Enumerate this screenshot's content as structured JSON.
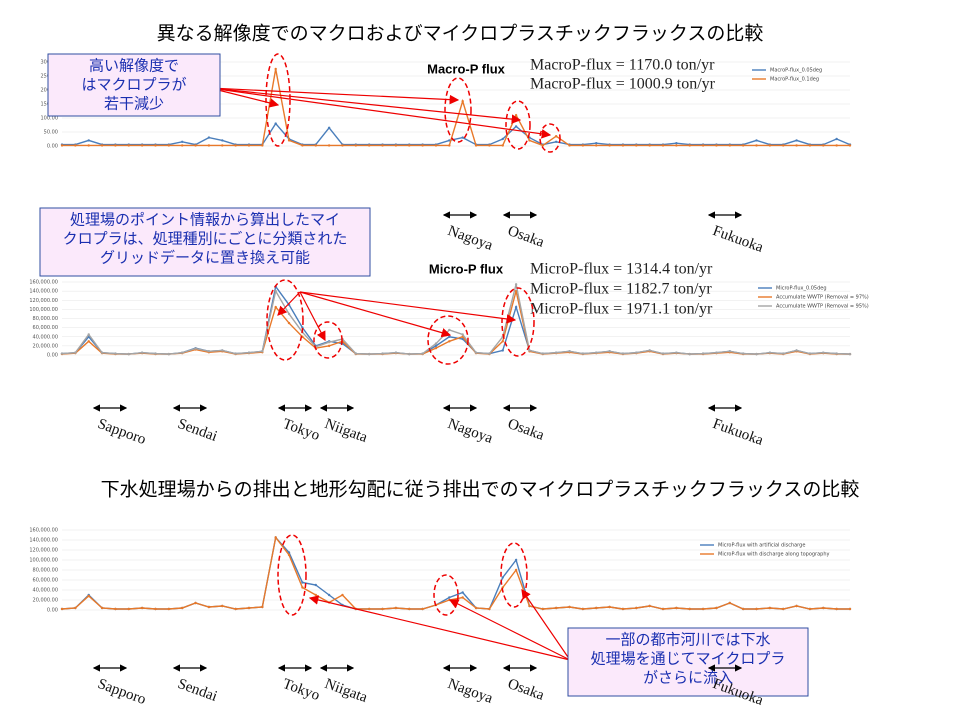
{
  "headings": [
    "異なる解像度でのマクロおよびマイクロプラスチックフラックスの比較",
    "下水処理場からの排出と地形勾配に従う排出でのマイクロプラスチックフラックスの比較"
  ],
  "chart_data": [
    {
      "type": "line",
      "title": "Macro-P flux",
      "annotations": [
        "MacroP-flux = 1170.0 ton/yr",
        "MacroP-flux = 1000.9 ton/yr"
      ],
      "callout": [
        "高い解像度で",
        "はマクロプラが",
        "若干減少"
      ],
      "cities": [
        "Nagoya",
        "Osaka",
        "Fukuoka"
      ],
      "ylim": [
        0,
        300
      ],
      "yticks": [
        {
          "value": 0,
          "label": "0.00"
        },
        {
          "value": 50,
          "label": "50.00"
        },
        {
          "value": 100,
          "label": "100.00"
        },
        {
          "value": 150,
          "label": "150.00"
        },
        {
          "value": 200,
          "label": "200.00"
        },
        {
          "value": 250,
          "label": "250.00"
        },
        {
          "value": 300,
          "label": "300.00"
        }
      ],
      "series": [
        {
          "name": "MacroP-flux_0.05deg",
          "color": "#4a7ebb",
          "values": [
            5,
            5,
            20,
            5,
            5,
            5,
            5,
            5,
            5,
            15,
            5,
            30,
            20,
            5,
            5,
            5,
            80,
            25,
            5,
            5,
            65,
            5,
            5,
            5,
            5,
            5,
            5,
            5,
            5,
            20,
            30,
            5,
            5,
            25,
            70,
            30,
            5,
            15,
            5,
            5,
            10,
            5,
            5,
            5,
            5,
            5,
            10,
            5,
            5,
            5,
            5,
            5,
            20,
            5,
            5,
            20,
            5,
            5,
            25,
            5
          ]
        },
        {
          "name": "MacroP-flux_0.1deg",
          "color": "#e8792a",
          "values": [
            2,
            2,
            2,
            2,
            2,
            2,
            2,
            2,
            2,
            2,
            2,
            2,
            2,
            2,
            2,
            2,
            275,
            20,
            2,
            2,
            2,
            2,
            2,
            2,
            2,
            2,
            2,
            2,
            2,
            2,
            160,
            2,
            2,
            2,
            110,
            20,
            2,
            35,
            2,
            2,
            2,
            2,
            2,
            2,
            2,
            2,
            2,
            2,
            2,
            2,
            2,
            2,
            2,
            2,
            2,
            2,
            2,
            2,
            2,
            2
          ]
        }
      ]
    },
    {
      "type": "line",
      "title": "Micro-P flux",
      "annotations": [
        "MicroP-flux = 1314.4 ton/yr",
        "MicroP-flux = 1182.7 ton/yr",
        "MicroP-flux = 1971.1 ton/yr"
      ],
      "callout": [
        "処理場のポイント情報から算出したマイ",
        "クロプラは、処理種別にごとに分類された",
        "グリッドデータに置き換え可能"
      ],
      "cities": [
        "Sapporo",
        "Sendai",
        "Tokyo",
        "Niigata",
        "Nagoya",
        "Osaka",
        "Fukuoka"
      ],
      "ylim": [
        0,
        160000
      ],
      "yticks": [
        {
          "value": 0,
          "label": "0.00"
        },
        {
          "value": 20000,
          "label": "20,000.00"
        },
        {
          "value": 40000,
          "label": "40,000.00"
        },
        {
          "value": 60000,
          "label": "60,000.00"
        },
        {
          "value": 80000,
          "label": "80,000.00"
        },
        {
          "value": 100000,
          "label": "100,000.00"
        },
        {
          "value": 120000,
          "label": "120,000.00"
        },
        {
          "value": 140000,
          "label": "140,000.00"
        },
        {
          "value": 160000,
          "label": "160,000.00"
        }
      ],
      "series": [
        {
          "name": "MicroP-flux_0.05deg",
          "color": "#4a7ebb",
          "values": [
            3000,
            5000,
            40000,
            5000,
            3000,
            2000,
            5000,
            3000,
            2000,
            5000,
            15000,
            8000,
            10000,
            3000,
            5000,
            8000,
            150000,
            110000,
            60000,
            20000,
            30000,
            25000,
            3000,
            2000,
            3000,
            5000,
            2000,
            3000,
            20000,
            40000,
            35000,
            5000,
            3000,
            10000,
            105000,
            10000,
            3000,
            5000,
            8000,
            3000,
            5000,
            8000,
            3000,
            5000,
            10000,
            3000,
            5000,
            2000,
            3000,
            5000,
            8000,
            3000,
            2000,
            5000,
            3000,
            10000,
            3000,
            5000,
            3000,
            2000
          ]
        },
        {
          "name": "Accumulate WWTP (Removal = 97%)",
          "color": "#e8792a",
          "values": [
            2000,
            4000,
            30000,
            4000,
            2000,
            2000,
            4000,
            2000,
            2000,
            4000,
            12000,
            6000,
            8000,
            2000,
            4000,
            6000,
            105000,
            70000,
            40000,
            15000,
            20000,
            30000,
            2000,
            2000,
            2000,
            4000,
            2000,
            2000,
            15000,
            30000,
            40000,
            4000,
            2000,
            30000,
            140000,
            8000,
            2000,
            4000,
            6000,
            2000,
            4000,
            6000,
            2000,
            4000,
            8000,
            2000,
            4000,
            2000,
            2000,
            4000,
            6000,
            2000,
            2000,
            4000,
            2000,
            8000,
            2000,
            4000,
            2000,
            2000
          ]
        },
        {
          "name": "Accumulate WWTP (Removal = 95%)",
          "color": "#a5a5a5",
          "values": [
            3000,
            5000,
            45000,
            5000,
            3000,
            2000,
            5000,
            3000,
            2000,
            5000,
            14000,
            8000,
            10000,
            3000,
            5000,
            8000,
            140000,
            90000,
            50000,
            18000,
            28000,
            35000,
            3000,
            2000,
            3000,
            5000,
            2000,
            3000,
            25000,
            55000,
            45000,
            5000,
            3000,
            40000,
            155000,
            10000,
            3000,
            5000,
            8000,
            3000,
            5000,
            8000,
            3000,
            5000,
            10000,
            3000,
            5000,
            2000,
            3000,
            5000,
            8000,
            3000,
            2000,
            5000,
            3000,
            10000,
            3000,
            5000,
            3000,
            2000
          ]
        }
      ]
    },
    {
      "type": "line",
      "callout": [
        "一部の都市河川では下水",
        "処理場を通じてマイクロプラ",
        "がさらに流入"
      ],
      "cities": [
        "Sapporo",
        "Sendai",
        "Tokyo",
        "Niigata",
        "Nagoya",
        "Osaka",
        "Fukuoka"
      ],
      "ylim": [
        0,
        160000
      ],
      "yticks": [
        {
          "value": 0,
          "label": "0.00"
        },
        {
          "value": 20000,
          "label": "20,000.00"
        },
        {
          "value": 40000,
          "label": "40,000.00"
        },
        {
          "value": 60000,
          "label": "60,000.00"
        },
        {
          "value": 80000,
          "label": "80,000.00"
        },
        {
          "value": 100000,
          "label": "100,000.00"
        },
        {
          "value": 120000,
          "label": "120,000.00"
        },
        {
          "value": 140000,
          "label": "140,000.00"
        },
        {
          "value": 160000,
          "label": "160,000.00"
        }
      ],
      "series": [
        {
          "name": "MicroP-flux with artificial discharge",
          "color": "#4a7ebb",
          "values": [
            2000,
            4000,
            30000,
            4000,
            2000,
            2000,
            4000,
            2000,
            2000,
            4000,
            14000,
            6000,
            8000,
            2000,
            4000,
            6000,
            145000,
            115000,
            55000,
            50000,
            30000,
            10000,
            2000,
            2000,
            2000,
            4000,
            2000,
            2000,
            10000,
            25000,
            35000,
            4000,
            2000,
            65000,
            100000,
            8000,
            2000,
            4000,
            6000,
            2000,
            4000,
            6000,
            2000,
            4000,
            8000,
            2000,
            4000,
            2000,
            2000,
            4000,
            14000,
            2000,
            2000,
            4000,
            2000,
            8000,
            2000,
            4000,
            2000,
            2000
          ]
        },
        {
          "name": "MicroP-flux with discharge along topography",
          "color": "#e8792a",
          "values": [
            2000,
            4000,
            28000,
            4000,
            2000,
            2000,
            4000,
            2000,
            2000,
            4000,
            14000,
            6000,
            8000,
            2000,
            4000,
            6000,
            145000,
            110000,
            45000,
            30000,
            15000,
            30000,
            2000,
            2000,
            2000,
            4000,
            2000,
            2000,
            10000,
            20000,
            25000,
            4000,
            2000,
            45000,
            80000,
            8000,
            2000,
            4000,
            6000,
            2000,
            4000,
            6000,
            2000,
            4000,
            8000,
            2000,
            4000,
            2000,
            2000,
            4000,
            14000,
            2000,
            2000,
            4000,
            2000,
            8000,
            2000,
            4000,
            2000,
            2000
          ]
        }
      ]
    }
  ]
}
